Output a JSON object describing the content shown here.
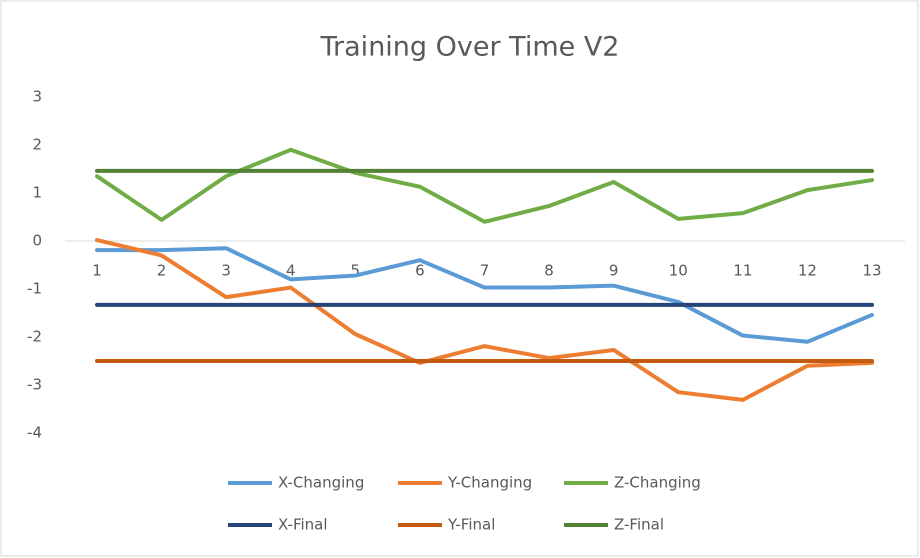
{
  "chart_data": {
    "type": "line",
    "title": "Training Over Time V2",
    "categories": [
      "1",
      "2",
      "3",
      "4",
      "5",
      "6",
      "7",
      "8",
      "9",
      "10",
      "11",
      "12",
      "13"
    ],
    "series": [
      {
        "name": "X-Changing",
        "color": "#5b9bd5",
        "values": [
          -0.19,
          -0.19,
          -0.15,
          -0.8,
          -0.72,
          -0.4,
          -0.97,
          -0.97,
          -0.93,
          -1.27,
          -1.97,
          -2.1,
          -1.54
        ]
      },
      {
        "name": "Y-Changing",
        "color": "#ed7d31",
        "values": [
          0.02,
          -0.3,
          -1.17,
          -0.97,
          -1.94,
          -2.54,
          -2.19,
          -2.44,
          -2.27,
          -3.15,
          -3.31,
          -2.6,
          -2.54
        ]
      },
      {
        "name": "Z-Changing",
        "color": "#70ad47",
        "values": [
          1.35,
          0.44,
          1.35,
          1.9,
          1.42,
          1.13,
          0.4,
          0.73,
          1.23,
          0.46,
          0.58,
          1.06,
          1.27
        ]
      },
      {
        "name": "X-Final",
        "color": "#264478",
        "values": [
          -1.33,
          -1.33,
          -1.33,
          -1.33,
          -1.33,
          -1.33,
          -1.33,
          -1.33,
          -1.33,
          -1.33,
          -1.33,
          -1.33,
          -1.33
        ]
      },
      {
        "name": "Y-Final",
        "color": "#c55a11",
        "values": [
          -2.5,
          -2.5,
          -2.5,
          -2.5,
          -2.5,
          -2.5,
          -2.5,
          -2.5,
          -2.5,
          -2.5,
          -2.5,
          -2.5,
          -2.5
        ]
      },
      {
        "name": "Z-Final",
        "color": "#548235",
        "values": [
          1.46,
          1.46,
          1.46,
          1.46,
          1.46,
          1.46,
          1.46,
          1.46,
          1.46,
          1.46,
          1.46,
          1.46,
          1.46
        ]
      }
    ],
    "ylim": [
      -4,
      3
    ],
    "yticks": [
      -4,
      -3,
      -2,
      -1,
      0,
      1,
      2,
      3
    ],
    "grid": false,
    "legend": "bottom"
  }
}
